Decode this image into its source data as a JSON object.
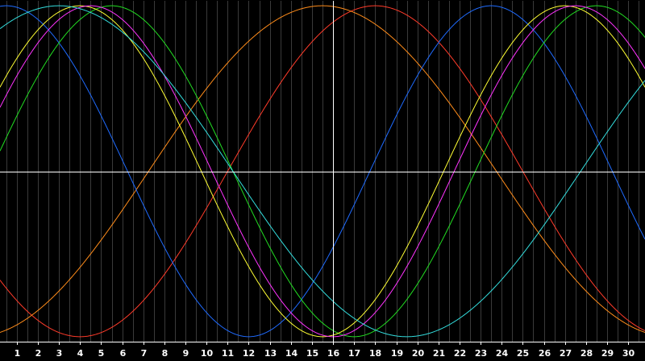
{
  "chart_data": {
    "type": "line",
    "title": "",
    "xlabel": "",
    "ylabel": "",
    "x": [
      1,
      2,
      3,
      4,
      5,
      6,
      7,
      8,
      9,
      10,
      11,
      12,
      13,
      14,
      15,
      16,
      17,
      18,
      19,
      20,
      21,
      22,
      23,
      24,
      25,
      26,
      27,
      28,
      29,
      30
    ],
    "x_tick_labels": [
      "1",
      "2",
      "3",
      "4",
      "5",
      "6",
      "7",
      "8",
      "9",
      "10",
      "11",
      "12",
      "13",
      "14",
      "15",
      "16",
      "17",
      "18",
      "19",
      "20",
      "21",
      "22",
      "23",
      "24",
      "25",
      "26",
      "27",
      "28",
      "29",
      "30"
    ],
    "xlim": [
      0.2,
      30.8
    ],
    "ylim": [
      -1.03,
      1.03
    ],
    "grid": true,
    "legend": "none",
    "crosshair": {
      "x": 16,
      "y": 0
    },
    "colors": {
      "background": "#000000",
      "grid": "#3a3a3a",
      "axis": "#ffffff",
      "tick_text": "#ffffff"
    },
    "series": [
      {
        "color": "#ff3b2a",
        "period": 28,
        "peak": 18,
        "x0": 0.2,
        "values": [
          -0.91,
          -0.98,
          -1.0,
          -0.97,
          -0.9,
          -0.78,
          -0.62,
          -0.43,
          -0.22,
          0.0,
          0.22,
          0.43,
          0.62,
          0.78,
          0.9,
          0.97,
          1.0,
          0.97,
          0.9,
          0.78,
          0.62,
          0.43,
          0.22,
          0.0,
          -0.22,
          -0.43,
          -0.62,
          -0.78,
          -0.9,
          -0.97
        ]
      },
      {
        "color": "#ff8c1a",
        "period": 33,
        "peak": 15.5,
        "x0": 0.2,
        "values": [
          -0.35,
          -0.17,
          0.02,
          0.2,
          0.38,
          0.54,
          0.68,
          0.8,
          0.89,
          0.96,
          0.99,
          1.0,
          0.98,
          0.93,
          0.85,
          0.75,
          0.62,
          0.47,
          0.3,
          0.13,
          -0.06,
          -0.24,
          -0.41,
          -0.56,
          -0.7,
          -0.82,
          -0.9,
          -0.96,
          -0.99,
          -1.0
        ]
      },
      {
        "color": "#1f6bff",
        "period": 23,
        "peak": 23.5,
        "x0": 0.2,
        "values": [
          1.0,
          0.96,
          0.84,
          0.66,
          0.43,
          0.17,
          -0.1,
          -0.37,
          -0.6,
          -0.8,
          -0.93,
          -1.0,
          -0.99,
          -0.9,
          -0.75,
          -0.54,
          -0.3,
          -0.03,
          0.24,
          0.49,
          0.71,
          0.87,
          0.97,
          1.0,
          0.95,
          0.84,
          0.66,
          0.44,
          0.18,
          -0.1
        ]
      },
      {
        "color": "#22dd22",
        "period": 23,
        "peak": 28.5,
        "x0": 0.2,
        "values": [
          0.57,
          0.36,
          0.12,
          -0.14,
          -0.39,
          -0.62,
          -0.8,
          -0.93,
          -1.0,
          -0.99,
          -0.91,
          -0.77,
          -0.57,
          -0.33,
          -0.07,
          0.19,
          0.44,
          0.66,
          0.84,
          0.95,
          1.0,
          0.97,
          0.88,
          0.73,
          0.52,
          0.28,
          0.02,
          -0.24,
          -0.49,
          -0.7
        ]
      },
      {
        "color": "#ffff33",
        "period": 23,
        "peak": 27,
        "x0": 0.2,
        "values": [
          -0.9,
          -0.97,
          -1.0,
          -0.97,
          -0.88,
          -0.75,
          -0.57,
          -0.36,
          -0.13,
          0.1,
          0.33,
          0.54,
          0.72,
          0.86,
          0.95,
          0.99,
          0.99,
          0.93,
          0.83,
          0.68,
          0.49,
          0.27,
          0.04,
          -0.2,
          -0.42,
          -0.62,
          -0.78,
          -0.9,
          -0.97,
          -1.0
        ]
      },
      {
        "color": "#ff33ff",
        "period": 23,
        "peak": 27.5,
        "x0": 0.2,
        "values": [
          -0.52,
          -0.72,
          -0.87,
          -0.97,
          -1.0,
          -0.97,
          -0.88,
          -0.73,
          -0.53,
          -0.31,
          -0.07,
          0.17,
          0.4,
          0.61,
          0.78,
          0.91,
          0.98,
          1.0,
          0.96,
          0.87,
          0.72,
          0.53,
          0.31,
          0.07,
          -0.17,
          -0.4,
          -0.61,
          -0.78,
          -0.9,
          -0.98
        ]
      },
      {
        "color": "#33dddd",
        "period": 33,
        "peak": 36,
        "x0": 0.2,
        "values": [
          0.06,
          -0.13,
          -0.31,
          -0.48,
          -0.63,
          -0.76,
          -0.86,
          -0.94,
          -0.98,
          -1.0,
          -0.99,
          -0.95,
          -0.88,
          -0.78,
          -0.66,
          -0.52,
          -0.36,
          -0.19,
          -0.01,
          0.17,
          0.35,
          0.51,
          0.66,
          0.78,
          0.88,
          0.95,
          0.99,
          1.0,
          0.98,
          0.93
        ]
      }
    ]
  }
}
